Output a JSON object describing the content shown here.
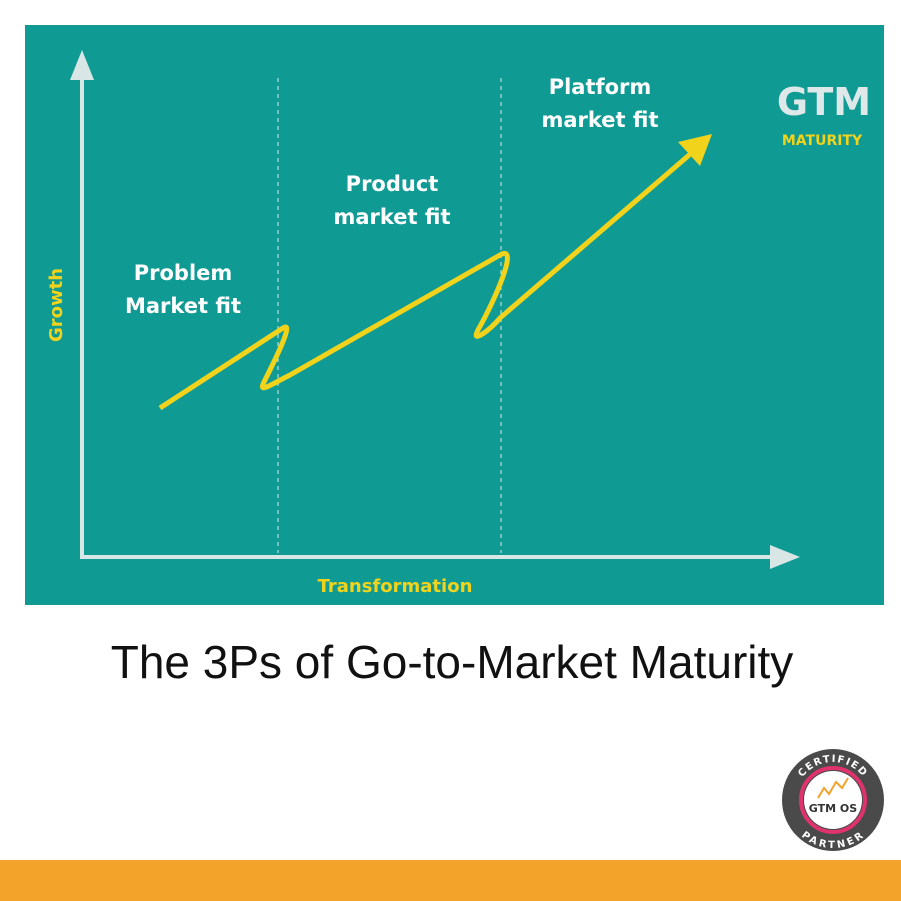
{
  "diagram": {
    "y_axis_label": "Growth",
    "x_axis_label": "Transformation",
    "stages": [
      {
        "lines": [
          "Problem",
          "Market fit"
        ]
      },
      {
        "lines": [
          "Product",
          "market fit"
        ]
      },
      {
        "lines": [
          "Platform",
          "market fit"
        ]
      }
    ],
    "brand": {
      "title": "GTM",
      "subtitle": "MATURITY"
    }
  },
  "caption": "The 3Ps of Go-to-Market Maturity",
  "badge": {
    "top": "CERTIFIED",
    "center": "GTM OS",
    "bottom": "PARTNER"
  }
}
